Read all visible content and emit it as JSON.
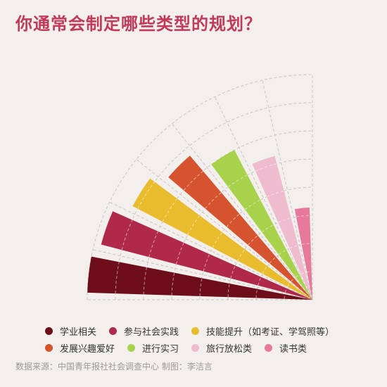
{
  "title": "你通常会制定哪些类型的规划？",
  "colors": {
    "title": "#c2395a",
    "background": "#f3efec",
    "grid": "#c9c4c0"
  },
  "chart_data": {
    "type": "bar",
    "layout": "radial-quarter",
    "title": "你通常会制定哪些类型的规划？",
    "grid": true,
    "legend_position": "bottom",
    "categories": [
      "学业相关",
      "参与社会实践",
      "技能提升（如考证、学驾照等）",
      "发展兴趣爱好",
      "进行实习",
      "旅行放松类",
      "读书类"
    ],
    "values": [
      100,
      97,
      90,
      84,
      75,
      66,
      41
    ],
    "colors": [
      "#6d0e1a",
      "#b0294b",
      "#e8bc2c",
      "#d65330",
      "#a8d24b",
      "#eebcce",
      "#e7799d"
    ],
    "rmax": 100
  },
  "legend": {
    "rows": [
      [
        0,
        1,
        2
      ],
      [
        3,
        4,
        5,
        6
      ]
    ]
  },
  "source": "数据来源：中国青年报社社会调查中心 制图：李洁言"
}
